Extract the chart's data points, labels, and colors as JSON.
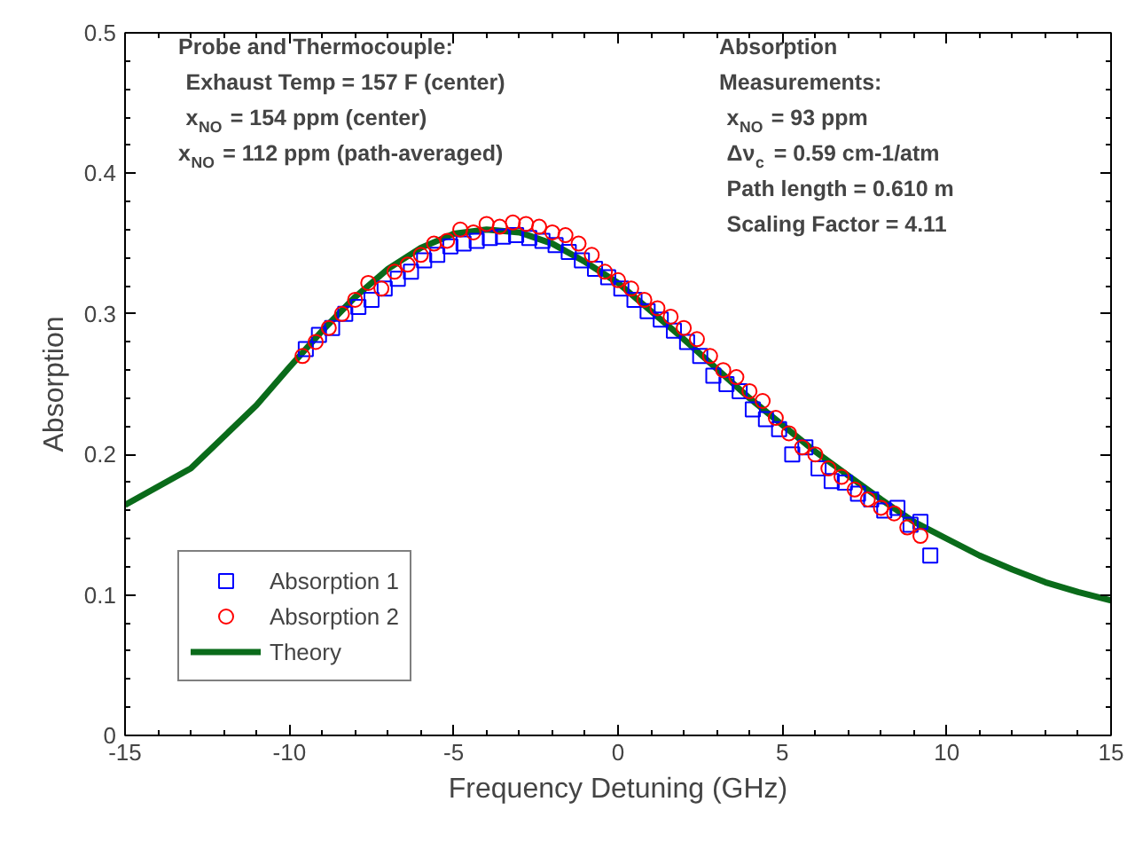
{
  "chart_data": {
    "type": "scatter",
    "xlabel": "Frequency Detuning (GHz)",
    "ylabel": "Absorption",
    "xlim": [
      -15,
      15
    ],
    "xticks": [
      -15,
      -10,
      -5,
      0,
      5,
      10,
      15
    ],
    "ylim": [
      0,
      0.5
    ],
    "yticks": [
      0,
      0.1,
      0.2,
      0.3,
      0.4,
      0.5
    ],
    "grid": false,
    "legend": "bottom left",
    "annotations": [
      "Probe and Thermocouple:",
      " Exhaust Temp = 157 F (center)",
      " x$_{NO}$ = 154 ppm (center)",
      "x$_{NO}$ = 112 ppm (path-averaged)",
      "Absorption",
      "Measurements:",
      " x$_{NO}$ = 93 ppm",
      " Δν$_{c}$ = 0.59 cm-1/atm",
      " Path length = 0.610 m",
      " Scaling Factor = 4.11"
    ],
    "series": [
      {
        "name": "Absorption 1",
        "marker": "square",
        "color": "#0000ff",
        "x": [
          -9.5,
          -9.1,
          -8.7,
          -8.3,
          -7.9,
          -7.5,
          -7.1,
          -6.7,
          -6.3,
          -5.9,
          -5.5,
          -5.1,
          -4.7,
          -4.3,
          -3.9,
          -3.5,
          -3.1,
          -2.7,
          -2.3,
          -1.9,
          -1.5,
          -1.1,
          -0.7,
          -0.3,
          0.1,
          0.5,
          0.9,
          1.3,
          1.7,
          2.1,
          2.5,
          2.9,
          3.3,
          3.7,
          4.1,
          4.5,
          4.9,
          5.3,
          5.7,
          6.1,
          6.5,
          6.9,
          7.3,
          7.7,
          8.1,
          8.5,
          8.9,
          9.2,
          9.5
        ],
        "values": [
          0.275,
          0.285,
          0.29,
          0.3,
          0.305,
          0.31,
          0.318,
          0.325,
          0.33,
          0.338,
          0.342,
          0.348,
          0.35,
          0.352,
          0.354,
          0.355,
          0.356,
          0.354,
          0.352,
          0.349,
          0.344,
          0.338,
          0.332,
          0.326,
          0.318,
          0.31,
          0.302,
          0.296,
          0.288,
          0.28,
          0.27,
          0.256,
          0.25,
          0.245,
          0.232,
          0.225,
          0.218,
          0.2,
          0.205,
          0.19,
          0.181,
          0.18,
          0.172,
          0.168,
          0.16,
          0.162,
          0.15,
          0.152,
          0.128
        ]
      },
      {
        "name": "Absorption 2",
        "marker": "circle",
        "color": "#ff0000",
        "x": [
          -9.6,
          -9.2,
          -8.8,
          -8.4,
          -8.0,
          -7.6,
          -7.2,
          -6.8,
          -6.4,
          -6.0,
          -5.6,
          -5.2,
          -4.8,
          -4.4,
          -4.0,
          -3.6,
          -3.2,
          -2.8,
          -2.4,
          -2.0,
          -1.6,
          -1.2,
          -0.8,
          -0.4,
          0.0,
          0.4,
          0.8,
          1.2,
          1.6,
          2.0,
          2.4,
          2.8,
          3.2,
          3.6,
          4.0,
          4.4,
          4.8,
          5.2,
          5.6,
          6.0,
          6.4,
          6.8,
          7.2,
          7.6,
          8.0,
          8.4,
          8.8,
          9.2
        ],
        "values": [
          0.27,
          0.28,
          0.29,
          0.3,
          0.31,
          0.322,
          0.318,
          0.33,
          0.335,
          0.342,
          0.35,
          0.352,
          0.36,
          0.358,
          0.364,
          0.362,
          0.365,
          0.364,
          0.362,
          0.358,
          0.356,
          0.35,
          0.342,
          0.33,
          0.324,
          0.318,
          0.31,
          0.304,
          0.298,
          0.29,
          0.282,
          0.27,
          0.26,
          0.255,
          0.245,
          0.238,
          0.226,
          0.215,
          0.205,
          0.2,
          0.19,
          0.184,
          0.175,
          0.168,
          0.162,
          0.158,
          0.148,
          0.142
        ]
      },
      {
        "name": "Theory",
        "type": "line",
        "color": "#0a6b1a",
        "x": [
          -15,
          -13,
          -11,
          -10,
          -9,
          -8,
          -7,
          -6,
          -5,
          -4,
          -3,
          -2,
          -1,
          0,
          1,
          2,
          3,
          4,
          5,
          6,
          7,
          8,
          9,
          10,
          11,
          12,
          13,
          14,
          15
        ],
        "values": [
          0.164,
          0.19,
          0.235,
          0.262,
          0.288,
          0.312,
          0.332,
          0.347,
          0.357,
          0.36,
          0.358,
          0.35,
          0.337,
          0.322,
          0.302,
          0.282,
          0.261,
          0.24,
          0.221,
          0.202,
          0.185,
          0.168,
          0.152,
          0.14,
          0.128,
          0.118,
          0.109,
          0.102,
          0.096
        ]
      }
    ]
  }
}
